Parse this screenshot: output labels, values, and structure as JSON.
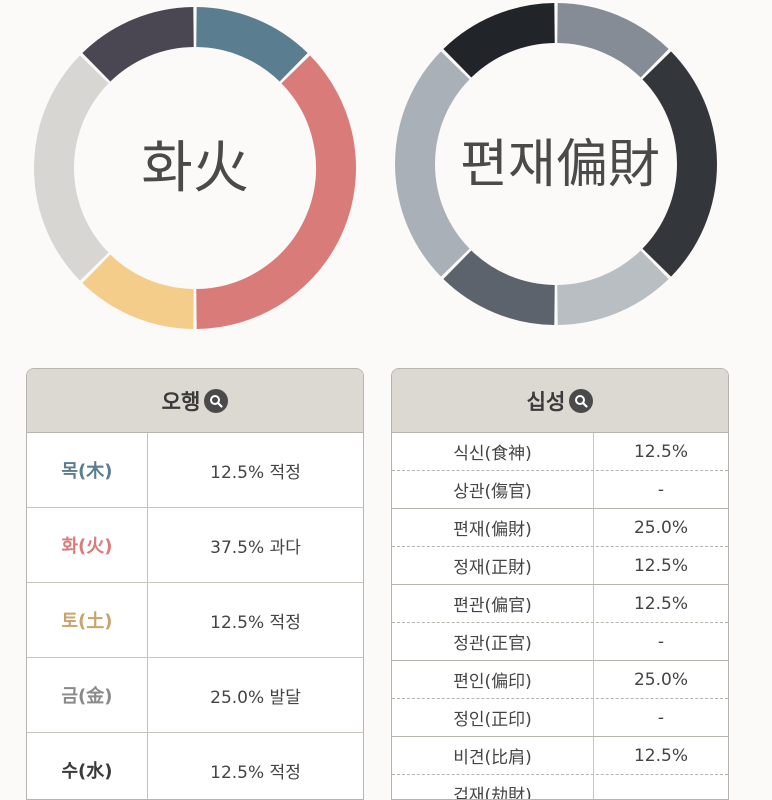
{
  "element_chart": {
    "center_label": "화火",
    "segments": [
      {
        "name": "목(木)",
        "percent": 12.5,
        "color": "#5a7d8f"
      },
      {
        "name": "화(火)",
        "percent": 37.5,
        "color": "#d97b79"
      },
      {
        "name": "토(土)",
        "percent": 12.5,
        "color": "#f5cd8a"
      },
      {
        "name": "금(金)",
        "percent": 25.0,
        "color": "#d8d6d2"
      },
      {
        "name": "수(水)",
        "percent": 12.5,
        "color": "#4a4752"
      }
    ]
  },
  "tengod_chart": {
    "center_label": "편재偏財",
    "segments": [
      {
        "name": "식신",
        "percent": 12.5,
        "color": "#868c96"
      },
      {
        "name": "상관",
        "percent": 0,
        "color": "#a6acb2"
      },
      {
        "name": "편재",
        "percent": 25.0,
        "color": "#33373b"
      },
      {
        "name": "정재",
        "percent": 12.5,
        "color": "#b9bec3"
      },
      {
        "name": "편관",
        "percent": 12.5,
        "color": "#5c636d"
      },
      {
        "name": "편인",
        "percent": 25.0,
        "color": "#aab0b7"
      },
      {
        "name": "비견",
        "percent": 12.5,
        "color": "#212429"
      }
    ]
  },
  "ohaeng_panel": {
    "title": "오행",
    "rows": [
      {
        "name": "목(木)",
        "value": "12.5% 적정",
        "color": "#5a7d8f"
      },
      {
        "name": "화(火)",
        "value": "37.5% 과다",
        "color": "#d97b79"
      },
      {
        "name": "토(土)",
        "value": "12.5% 적정",
        "color": "#c9a46a"
      },
      {
        "name": "금(金)",
        "value": "25.0% 발달",
        "color": "#8a8a8a"
      },
      {
        "name": "수(水)",
        "value": "12.5% 적정",
        "color": "#3a3a3a"
      }
    ]
  },
  "sipseong_panel": {
    "title": "십성",
    "rows": [
      {
        "name": "식신(食神)",
        "value": "12.5%"
      },
      {
        "name": "상관(傷官)",
        "value": "-"
      },
      {
        "name": "편재(偏財)",
        "value": "25.0%"
      },
      {
        "name": "정재(正財)",
        "value": "12.5%"
      },
      {
        "name": "편관(偏官)",
        "value": "12.5%"
      },
      {
        "name": "정관(正官)",
        "value": "-"
      },
      {
        "name": "편인(偏印)",
        "value": "25.0%"
      },
      {
        "name": "정인(正印)",
        "value": "-"
      },
      {
        "name": "비견(比肩)",
        "value": "12.5%"
      },
      {
        "name": "겁재(劫財)",
        "value": ""
      }
    ]
  }
}
